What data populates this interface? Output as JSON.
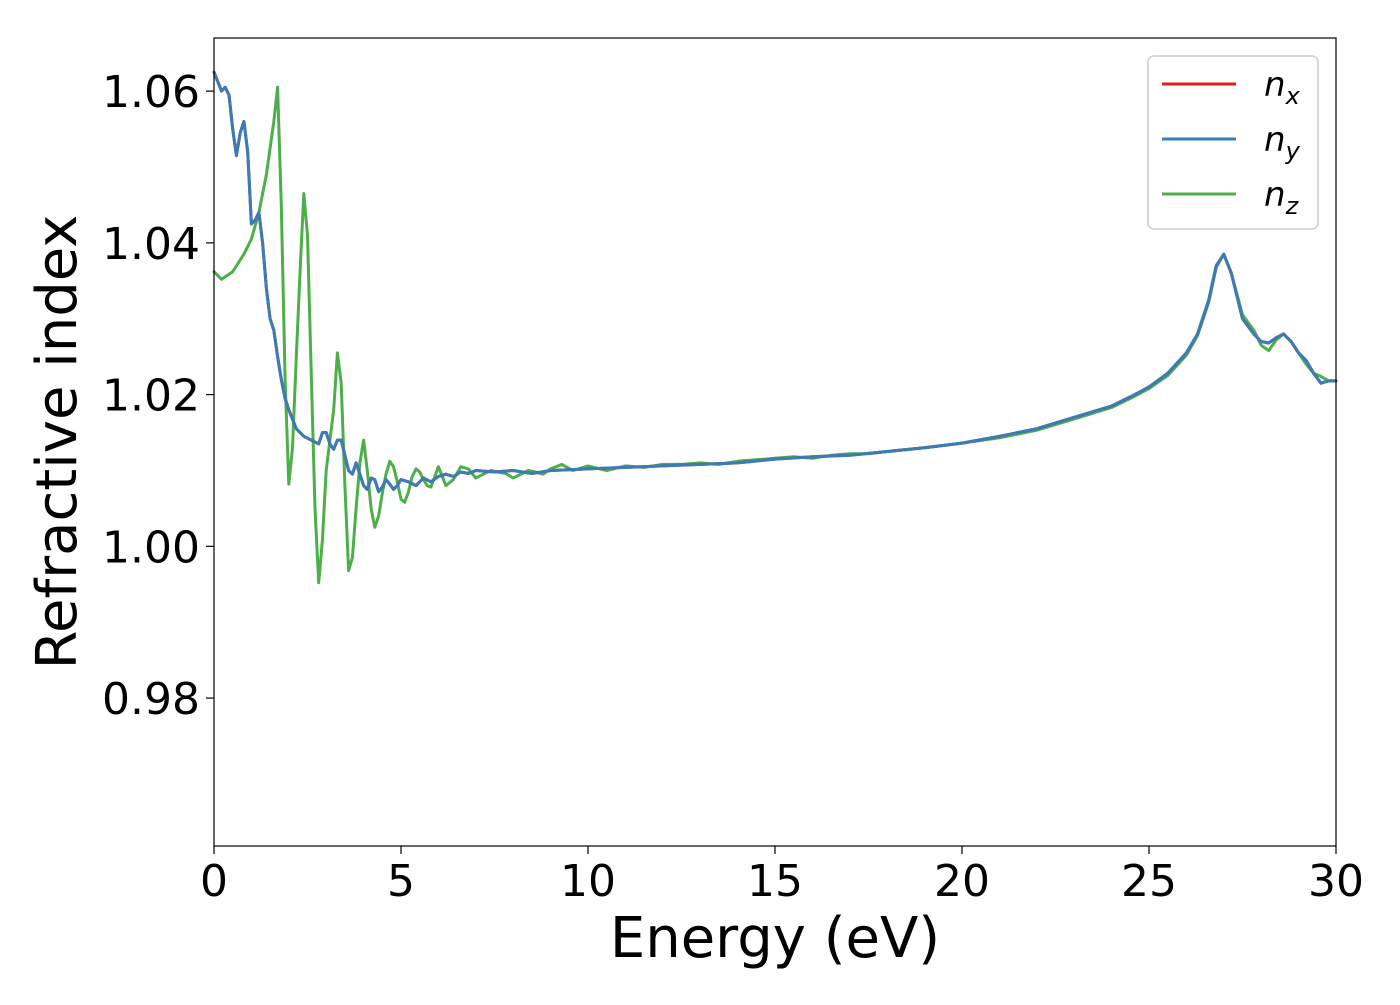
{
  "chart_data": {
    "type": "line",
    "title": "",
    "xlabel": "Energy (eV)",
    "ylabel": "Refractive index",
    "xlim": [
      0,
      30
    ],
    "ylim": [
      0.9605,
      1.067
    ],
    "xticks": [
      0,
      5,
      10,
      15,
      20,
      25,
      30
    ],
    "xtick_labels": [
      "0",
      "5",
      "10",
      "15",
      "20",
      "25",
      "30"
    ],
    "yticks": [
      0.98,
      1.0,
      1.02,
      1.04,
      1.06
    ],
    "ytick_labels": [
      "0.98",
      "1.00",
      "1.02",
      "1.04",
      "1.06"
    ],
    "grid": false,
    "legend_position": "top-right",
    "series": [
      {
        "name": "n_x",
        "label_base": "n",
        "label_sub": "x",
        "color": "#e41a1c",
        "x": [
          0,
          0.2,
          0.3,
          0.4,
          0.5,
          0.6,
          0.7,
          0.8,
          0.9,
          1.0,
          1.1,
          1.2,
          1.3,
          1.4,
          1.5,
          1.6,
          1.7,
          1.8,
          1.9,
          2.0,
          2.2,
          2.4,
          2.6,
          2.8,
          2.9,
          3.0,
          3.1,
          3.2,
          3.3,
          3.4,
          3.5,
          3.6,
          3.7,
          3.8,
          3.9,
          4.0,
          4.1,
          4.2,
          4.3,
          4.4,
          4.5,
          4.6,
          4.7,
          4.8,
          4.9,
          5.0,
          5.2,
          5.4,
          5.6,
          5.8,
          6.0,
          6.2,
          6.4,
          6.6,
          6.8,
          7.0,
          7.5,
          8.0,
          8.5,
          9.0,
          9.5,
          10,
          11,
          12,
          13,
          14,
          15,
          16,
          17,
          18,
          19,
          20,
          21,
          22,
          23,
          24,
          24.5,
          25,
          25.5,
          26,
          26.3,
          26.6,
          26.8,
          27.0,
          27.2,
          27.5,
          27.8,
          28.0,
          28.2,
          28.4,
          28.6,
          28.8,
          29.0,
          29.2,
          29.4,
          29.6,
          29.8,
          30
        ],
        "y": [
          1.0625,
          1.06,
          1.0605,
          1.0595,
          1.055,
          1.0515,
          1.0545,
          1.056,
          1.052,
          1.0425,
          1.043,
          1.044,
          1.04,
          1.034,
          1.03,
          1.0285,
          1.025,
          1.022,
          1.0195,
          1.018,
          1.0155,
          1.0145,
          1.014,
          1.0135,
          1.015,
          1.015,
          1.0135,
          1.0128,
          1.014,
          1.014,
          1.012,
          1.01,
          1.0095,
          1.011,
          1.0095,
          1.008,
          1.0075,
          1.009,
          1.0088,
          1.0072,
          1.0078,
          1.0088,
          1.0082,
          1.0075,
          1.008,
          1.0088,
          1.0085,
          1.008,
          1.009,
          1.0085,
          1.0092,
          1.0095,
          1.0092,
          1.0098,
          1.0096,
          1.01,
          1.0098,
          1.01,
          1.0096,
          1.01,
          1.0101,
          1.0102,
          1.0104,
          1.0106,
          1.0108,
          1.011,
          1.0115,
          1.0118,
          1.012,
          1.0125,
          1.013,
          1.0136,
          1.0145,
          1.0155,
          1.017,
          1.0185,
          1.0197,
          1.021,
          1.0228,
          1.0255,
          1.028,
          1.0325,
          1.037,
          1.0385,
          1.036,
          1.03,
          1.028,
          1.027,
          1.0268,
          1.0275,
          1.028,
          1.027,
          1.0255,
          1.0245,
          1.0228,
          1.0215,
          1.0218,
          1.0218
        ]
      },
      {
        "name": "n_y",
        "label_base": "n",
        "label_sub": "y",
        "color": "#377eb8",
        "x": [
          0,
          0.2,
          0.3,
          0.4,
          0.5,
          0.6,
          0.7,
          0.8,
          0.9,
          1.0,
          1.1,
          1.2,
          1.3,
          1.4,
          1.5,
          1.6,
          1.7,
          1.8,
          1.9,
          2.0,
          2.2,
          2.4,
          2.6,
          2.8,
          2.9,
          3.0,
          3.1,
          3.2,
          3.3,
          3.4,
          3.5,
          3.6,
          3.7,
          3.8,
          3.9,
          4.0,
          4.1,
          4.2,
          4.3,
          4.4,
          4.5,
          4.6,
          4.7,
          4.8,
          4.9,
          5.0,
          5.2,
          5.4,
          5.6,
          5.8,
          6.0,
          6.2,
          6.4,
          6.6,
          6.8,
          7.0,
          7.5,
          8.0,
          8.5,
          9.0,
          9.5,
          10,
          11,
          12,
          13,
          14,
          15,
          16,
          17,
          18,
          19,
          20,
          21,
          22,
          23,
          24,
          24.5,
          25,
          25.5,
          26,
          26.3,
          26.6,
          26.8,
          27.0,
          27.2,
          27.5,
          27.8,
          28.0,
          28.2,
          28.4,
          28.6,
          28.8,
          29.0,
          29.2,
          29.4,
          29.6,
          29.8,
          30
        ],
        "y": [
          1.0625,
          1.06,
          1.0605,
          1.0595,
          1.055,
          1.0515,
          1.0545,
          1.056,
          1.052,
          1.0425,
          1.043,
          1.044,
          1.04,
          1.034,
          1.03,
          1.0285,
          1.025,
          1.022,
          1.0195,
          1.018,
          1.0155,
          1.0145,
          1.014,
          1.0135,
          1.015,
          1.015,
          1.0135,
          1.0128,
          1.014,
          1.014,
          1.012,
          1.01,
          1.0095,
          1.011,
          1.0095,
          1.008,
          1.0075,
          1.009,
          1.0088,
          1.0072,
          1.0078,
          1.0088,
          1.0082,
          1.0075,
          1.008,
          1.0088,
          1.0085,
          1.008,
          1.009,
          1.0085,
          1.0092,
          1.0095,
          1.0092,
          1.0098,
          1.0096,
          1.01,
          1.0098,
          1.01,
          1.0096,
          1.01,
          1.0101,
          1.0102,
          1.0104,
          1.0106,
          1.0108,
          1.011,
          1.0115,
          1.0118,
          1.012,
          1.0125,
          1.013,
          1.0136,
          1.0145,
          1.0155,
          1.017,
          1.0185,
          1.0197,
          1.021,
          1.0228,
          1.0255,
          1.028,
          1.0325,
          1.037,
          1.0385,
          1.036,
          1.03,
          1.028,
          1.027,
          1.0268,
          1.0275,
          1.028,
          1.027,
          1.0255,
          1.0245,
          1.0228,
          1.0215,
          1.0218,
          1.0218
        ]
      },
      {
        "name": "n_z",
        "label_base": "n",
        "label_sub": "z",
        "color": "#4daf4a",
        "x": [
          0,
          0.2,
          0.5,
          0.8,
          1.0,
          1.2,
          1.4,
          1.6,
          1.7,
          1.8,
          1.9,
          2.0,
          2.1,
          2.2,
          2.3,
          2.4,
          2.5,
          2.6,
          2.7,
          2.8,
          2.9,
          3.0,
          3.1,
          3.2,
          3.3,
          3.4,
          3.5,
          3.6,
          3.7,
          3.8,
          3.9,
          4.0,
          4.1,
          4.2,
          4.3,
          4.4,
          4.5,
          4.6,
          4.7,
          4.8,
          4.9,
          5.0,
          5.1,
          5.2,
          5.3,
          5.4,
          5.5,
          5.6,
          5.7,
          5.8,
          6.0,
          6.2,
          6.4,
          6.6,
          6.8,
          7.0,
          7.2,
          7.4,
          7.6,
          7.8,
          8.0,
          8.2,
          8.4,
          8.6,
          8.8,
          9.0,
          9.3,
          9.6,
          10,
          10.5,
          11,
          11.5,
          12,
          12.5,
          13,
          13.5,
          14,
          14.5,
          15,
          15.5,
          16,
          16.5,
          17,
          17.5,
          18,
          19,
          20,
          21,
          22,
          23,
          24,
          24.5,
          25,
          25.5,
          26,
          26.3,
          26.6,
          26.8,
          27.0,
          27.2,
          27.5,
          27.8,
          28.0,
          28.2,
          28.4,
          28.6,
          28.8,
          29.0,
          29.2,
          29.4,
          29.6,
          29.8,
          30
        ],
        "y": [
          1.0362,
          1.0352,
          1.0362,
          1.0385,
          1.0405,
          1.044,
          1.049,
          1.056,
          1.0605,
          1.045,
          1.022,
          1.0082,
          1.013,
          1.025,
          1.036,
          1.0465,
          1.041,
          1.023,
          1.005,
          0.9952,
          1.001,
          1.01,
          1.014,
          1.018,
          1.0255,
          1.0215,
          1.008,
          0.9968,
          0.9985,
          1.005,
          1.011,
          1.014,
          1.01,
          1.005,
          1.0025,
          1.004,
          1.007,
          1.0095,
          1.0112,
          1.0105,
          1.0085,
          1.0062,
          1.0058,
          1.0072,
          1.0092,
          1.0102,
          1.0098,
          1.0088,
          1.008,
          1.0078,
          1.0105,
          1.008,
          1.0088,
          1.0105,
          1.0102,
          1.009,
          1.0095,
          1.01,
          1.0098,
          1.0096,
          1.009,
          1.0095,
          1.01,
          1.0098,
          1.0095,
          1.0102,
          1.0108,
          1.01,
          1.0106,
          1.01,
          1.0106,
          1.0104,
          1.0108,
          1.0108,
          1.011,
          1.0108,
          1.0112,
          1.0114,
          1.0116,
          1.0118,
          1.0116,
          1.012,
          1.0122,
          1.0122,
          1.0125,
          1.013,
          1.0136,
          1.0143,
          1.0153,
          1.0168,
          1.0183,
          1.0195,
          1.0208,
          1.0225,
          1.0252,
          1.0278,
          1.0322,
          1.0368,
          1.0385,
          1.036,
          1.0305,
          1.0285,
          1.0265,
          1.0258,
          1.0272,
          1.028,
          1.027,
          1.0255,
          1.024,
          1.0228,
          1.0224,
          1.0218,
          1.0218
        ]
      }
    ]
  }
}
